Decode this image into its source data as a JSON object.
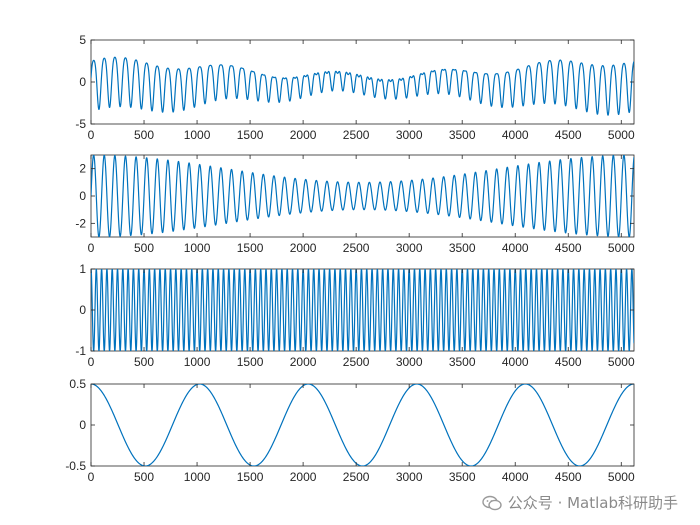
{
  "watermark": {
    "text": "公众号 · Matlab科研助手",
    "icon": "wechat-icon"
  },
  "line_color": "#0072BD",
  "chart_data": [
    {
      "type": "line",
      "title": "",
      "xlabel": "",
      "ylabel": "",
      "xlim": [
        0,
        5120
      ],
      "ylim": [
        -5,
        5
      ],
      "xticks": [
        0,
        500,
        1000,
        1500,
        2000,
        2500,
        3000,
        3500,
        4000,
        4500,
        5000
      ],
      "yticks": [
        -5,
        0,
        5
      ],
      "grid": false,
      "series": [
        {
          "formula": "(2 + 1*cos(2*pi*x/5120)) * sin(2*pi*x/100) + 0.5 * sin(2*pi*x/1024) + 0.5*cos(2*pi*x/50)",
          "x_range": [
            0,
            5120
          ],
          "samples": 2560
        }
      ]
    },
    {
      "type": "line",
      "title": "",
      "xlabel": "",
      "ylabel": "",
      "xlim": [
        0,
        5120
      ],
      "ylim": [
        -3,
        3
      ],
      "xticks": [
        0,
        500,
        1000,
        1500,
        2000,
        2500,
        3000,
        3500,
        4000,
        4500,
        5000
      ],
      "yticks": [
        -2,
        0,
        2
      ],
      "grid": false,
      "series": [
        {
          "formula": "(2 + 1*cos(2*pi*x/5120)) * sin(2*pi*x/100)",
          "x_range": [
            0,
            5120
          ],
          "samples": 2560
        }
      ]
    },
    {
      "type": "line",
      "title": "",
      "xlabel": "",
      "ylabel": "",
      "xlim": [
        0,
        5120
      ],
      "ylim": [
        -1,
        1
      ],
      "xticks": [
        0,
        500,
        1000,
        1500,
        2000,
        2500,
        3000,
        3500,
        4000,
        4500,
        5000
      ],
      "yticks": [
        -1,
        0,
        1
      ],
      "grid": false,
      "series": [
        {
          "formula": "cos(2*pi*x/50)",
          "x_range": [
            0,
            5120
          ],
          "samples": 5120
        }
      ]
    },
    {
      "type": "line",
      "title": "",
      "xlabel": "",
      "ylabel": "",
      "xlim": [
        0,
        5120
      ],
      "ylim": [
        -0.5,
        0.5
      ],
      "xticks": [
        0,
        500,
        1000,
        1500,
        2000,
        2500,
        3000,
        3500,
        4000,
        4500,
        5000
      ],
      "yticks": [
        -0.5,
        0,
        0.5
      ],
      "grid": false,
      "series": [
        {
          "formula": "0.5 * cos(2*pi*x/1024)",
          "x_range": [
            0,
            5120
          ],
          "samples": 1024
        }
      ]
    }
  ]
}
